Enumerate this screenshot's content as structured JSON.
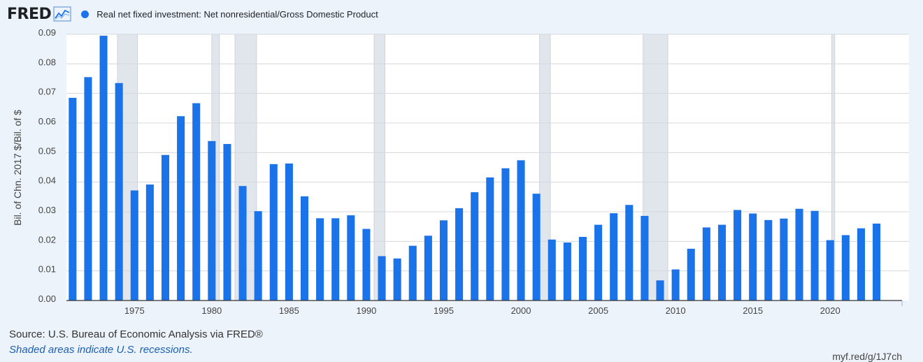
{
  "header": {
    "logo_text": "FRED",
    "logo_icon": "line-chart-icon"
  },
  "chart_data": {
    "type": "bar",
    "title": "",
    "legend": [
      {
        "name": "Real net fixed investment: Net nonresidential/Gross Domestic Product",
        "color": "#1a73e8"
      }
    ],
    "ylabel": "Bil. of Chn. 2017 $/Bil. of $",
    "xlabel": "",
    "ylim": [
      0,
      0.09
    ],
    "yticks": [
      "0.00",
      "0.01",
      "0.02",
      "0.03",
      "0.04",
      "0.05",
      "0.06",
      "0.07",
      "0.08",
      "0.09"
    ],
    "xticks": [
      "1975",
      "1980",
      "1985",
      "1990",
      "1995",
      "2000",
      "2005",
      "2010",
      "2015",
      "2020"
    ],
    "grid": true,
    "x": [
      1971,
      1972,
      1973,
      1974,
      1975,
      1976,
      1977,
      1978,
      1979,
      1980,
      1981,
      1982,
      1983,
      1984,
      1985,
      1986,
      1987,
      1988,
      1989,
      1990,
      1991,
      1992,
      1993,
      1994,
      1995,
      1996,
      1997,
      1998,
      1999,
      2000,
      2001,
      2002,
      2003,
      2004,
      2005,
      2006,
      2007,
      2008,
      2009,
      2010,
      2011,
      2012,
      2013,
      2014,
      2015,
      2016,
      2017,
      2018,
      2019,
      2020,
      2021,
      2022,
      2023
    ],
    "values": [
      0.0685,
      0.0755,
      0.0895,
      0.0735,
      0.0372,
      0.0392,
      0.0492,
      0.0623,
      0.0667,
      0.0539,
      0.0529,
      0.0387,
      0.0302,
      0.0461,
      0.0463,
      0.0352,
      0.0278,
      0.0278,
      0.0288,
      0.0242,
      0.015,
      0.0142,
      0.0185,
      0.0219,
      0.0271,
      0.0312,
      0.0366,
      0.0416,
      0.0447,
      0.0474,
      0.0361,
      0.0206,
      0.0196,
      0.0215,
      0.0256,
      0.0295,
      0.0323,
      0.0286,
      0.0068,
      0.0105,
      0.0175,
      0.0247,
      0.0256,
      0.0306,
      0.0294,
      0.0272,
      0.0277,
      0.031,
      0.0303,
      0.0204,
      0.0221,
      0.0244,
      0.026
    ],
    "recessions": [
      [
        1973.9,
        1975.2
      ],
      [
        1980.0,
        1980.5
      ],
      [
        1981.5,
        1982.9
      ],
      [
        1990.5,
        1991.2
      ],
      [
        2001.2,
        2001.9
      ],
      [
        2007.9,
        2009.5
      ],
      [
        2020.1,
        2020.3
      ]
    ],
    "xlim": [
      1970.6,
      2025.1
    ]
  },
  "footer": {
    "source": "Source: U.S. Bureau of Economic Analysis via FRED®",
    "note": "Shaded areas indicate U.S. recessions.",
    "link": "myf.red/g/1J7ch"
  }
}
